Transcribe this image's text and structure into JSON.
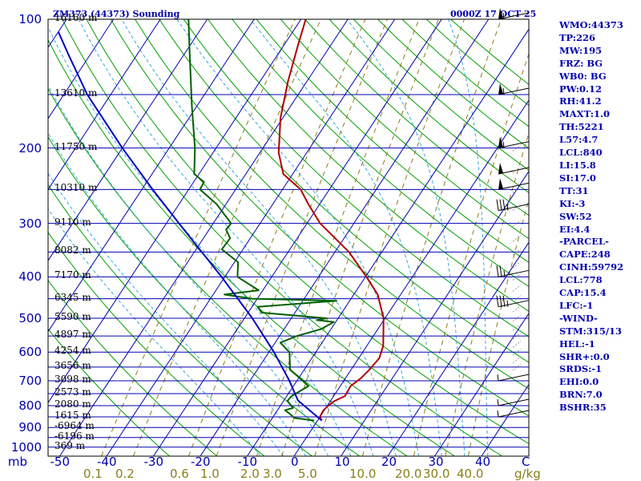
{
  "header": {
    "station_title": "ZM373 (44373) Sounding",
    "valid_time": "0000Z 17 OCT 25"
  },
  "colors": {
    "isobar": "#0000b0",
    "isotherm": "#0000b0",
    "dry_adiabat": "#00a000",
    "moist_adiabat": "#3aa8d8",
    "mixing_ratio": "#8a7e1a",
    "temperature": "#b00000",
    "dewpoint": "#006000",
    "parcel": "#0000c0"
  },
  "chart_data": {
    "type": "line",
    "diagram": "skew-T log-P",
    "xlabel_unit": "mb",
    "mixing_ratio_unit": "g/kg",
    "pressure_levels": [
      100,
      200,
      300,
      400,
      500,
      600,
      700,
      800,
      900,
      1000
    ],
    "pressure_tick_labels": [
      "100",
      "200",
      "300",
      "400",
      "500",
      "600",
      "700",
      "800",
      "900",
      "1000"
    ],
    "pressure_axis_label": "mb",
    "plim": [
      1050,
      100
    ],
    "temperature_ticks": [
      -50,
      -40,
      -30,
      -20,
      -10,
      0,
      10,
      20,
      30,
      40
    ],
    "temperature_tick_labels": [
      "-50",
      "-40",
      "-30",
      "-20",
      "-10",
      "0",
      "10",
      "20",
      "30",
      "40"
    ],
    "temperature_axis_end_label": "C",
    "mixing_ratio_ticks": [
      0.1,
      0.2,
      0.6,
      1.0,
      2.0,
      3.0,
      5.0,
      10.0,
      20.0,
      30.0,
      40.0
    ],
    "mixing_ratio_tick_labels": [
      "0.1",
      "0.2",
      "0.6",
      "1.0",
      "2.0",
      "3.0",
      "5.0",
      "10.0",
      "20.0",
      "30.0",
      "40.0"
    ],
    "height_labels": [
      {
        "p": 100,
        "text": "16160 m"
      },
      {
        "p": 150,
        "text": "13610 m"
      },
      {
        "p": 200,
        "text": "11750 m"
      },
      {
        "p": 250,
        "text": "10310 m"
      },
      {
        "p": 300,
        "text": "9110 m"
      },
      {
        "p": 350,
        "text": "8082 m"
      },
      {
        "p": 400,
        "text": "7170 m"
      },
      {
        "p": 450,
        "text": "6345 m"
      },
      {
        "p": 500,
        "text": "5590 m"
      },
      {
        "p": 550,
        "text": "4897 m"
      },
      {
        "p": 600,
        "text": "4254 m"
      },
      {
        "p": 650,
        "text": "3656 m"
      },
      {
        "p": 700,
        "text": "3098 m"
      },
      {
        "p": 750,
        "text": "2573 m"
      },
      {
        "p": 800,
        "text": "2080 m"
      },
      {
        "p": 850,
        "text": "1615 m"
      },
      {
        "p": 900,
        "text": "-6964 m"
      },
      {
        "p": 950,
        "text": "-6196 m"
      },
      {
        "p": 1000,
        "text": "369 m"
      }
    ],
    "series": [
      {
        "name": "Temperature",
        "points": [
          [
            867,
            0.9
          ],
          [
            850,
            0.0
          ],
          [
            820,
            -0.2
          ],
          [
            800,
            0.2
          ],
          [
            780,
            0.9
          ],
          [
            760,
            2.4
          ],
          [
            720,
            2.2
          ],
          [
            690,
            3.3
          ],
          [
            660,
            3.9
          ],
          [
            620,
            4.4
          ],
          [
            580,
            3.5
          ],
          [
            500,
            -0.3
          ],
          [
            440,
            -4.9
          ],
          [
            400,
            -9.8
          ],
          [
            350,
            -17.0
          ],
          [
            300,
            -27.2
          ],
          [
            270,
            -32.5
          ],
          [
            250,
            -36.1
          ],
          [
            230,
            -42.0
          ],
          [
            205,
            -46.0
          ],
          [
            170,
            -50.5
          ],
          [
            140,
            -54.0
          ],
          [
            115,
            -57.0
          ],
          [
            100,
            -59.0
          ]
        ]
      },
      {
        "name": "Dewpoint",
        "points": [
          [
            867,
            -0.7
          ],
          [
            855,
            -5.3
          ],
          [
            840,
            -6.5
          ],
          [
            820,
            -8.4
          ],
          [
            810,
            -7.0
          ],
          [
            780,
            -9.2
          ],
          [
            760,
            -9.0
          ],
          [
            720,
            -6.8
          ],
          [
            680,
            -10.8
          ],
          [
            660,
            -13.0
          ],
          [
            600,
            -15.6
          ],
          [
            570,
            -18.9
          ],
          [
            550,
            -16.3
          ],
          [
            530,
            -12.1
          ],
          [
            510,
            -10.4
          ],
          [
            505,
            -14.3
          ],
          [
            500,
            -12.5
          ],
          [
            485,
            -27.1
          ],
          [
            470,
            -28.8
          ],
          [
            455,
            -12.8
          ],
          [
            450,
            -31.1
          ],
          [
            440,
            -37.6
          ],
          [
            430,
            -30.9
          ],
          [
            400,
            -37.3
          ],
          [
            370,
            -39.2
          ],
          [
            345,
            -44.5
          ],
          [
            325,
            -44.3
          ],
          [
            310,
            -46.4
          ],
          [
            300,
            -46.2
          ],
          [
            270,
            -52.1
          ],
          [
            250,
            -57.6
          ],
          [
            240,
            -57.8
          ],
          [
            230,
            -61.0
          ],
          [
            200,
            -64.5
          ],
          [
            160,
            -71.0
          ],
          [
            120,
            -79.0
          ],
          [
            100,
            -84.0
          ]
        ]
      },
      {
        "name": "Parcel",
        "points": [
          [
            867,
            0.9
          ],
          [
            778,
            -7.0
          ],
          [
            700,
            -11.6
          ],
          [
            600,
            -18.9
          ],
          [
            500,
            -28.3
          ],
          [
            400,
            -40.7
          ],
          [
            300,
            -57.3
          ],
          [
            250,
            -67.7
          ],
          [
            200,
            -80.0
          ],
          [
            150,
            -95.0
          ],
          [
            120,
            -105.0
          ],
          [
            107,
            -110.0
          ]
        ]
      }
    ],
    "wind_barbs": [
      {
        "p": 100,
        "speed_kt": 55
      },
      {
        "p": 150,
        "speed_kt": 55
      },
      {
        "p": 200,
        "speed_kt": 55
      },
      {
        "p": 230,
        "speed_kt": 50
      },
      {
        "p": 250,
        "speed_kt": 50
      },
      {
        "p": 280,
        "speed_kt": 35
      },
      {
        "p": 400,
        "speed_kt": 25
      },
      {
        "p": 470,
        "speed_kt": 35
      },
      {
        "p": 700,
        "speed_kt": 5
      },
      {
        "p": 800,
        "speed_kt": 5
      },
      {
        "p": 850,
        "speed_kt": 5
      }
    ]
  },
  "indices": [
    "WMO:44373",
    "TP:226",
    "MW:195",
    "FRZ: BG",
    "WB0: BG",
    "PW:0.12",
    "RH:41.2",
    "MAXT:1.0",
    "TH:5221",
    "L57:4.7",
    "LCL:840",
    "LI:15.8",
    "SI:17.0",
    "TT:31",
    "KI:-3",
    "SW:52",
    "EI:4.4",
    "-PARCEL-",
    "CAPE:248",
    "CINH:59792",
    "LCL:778",
    "CAP:15.4",
    "LFC:-1",
    "-WIND-",
    "STM:315/13",
    "HEL:-1",
    "SHR+:0.0",
    "SRDS:-1",
    "EHI:0.0",
    "BRN:7.0",
    "BSHR:35"
  ]
}
